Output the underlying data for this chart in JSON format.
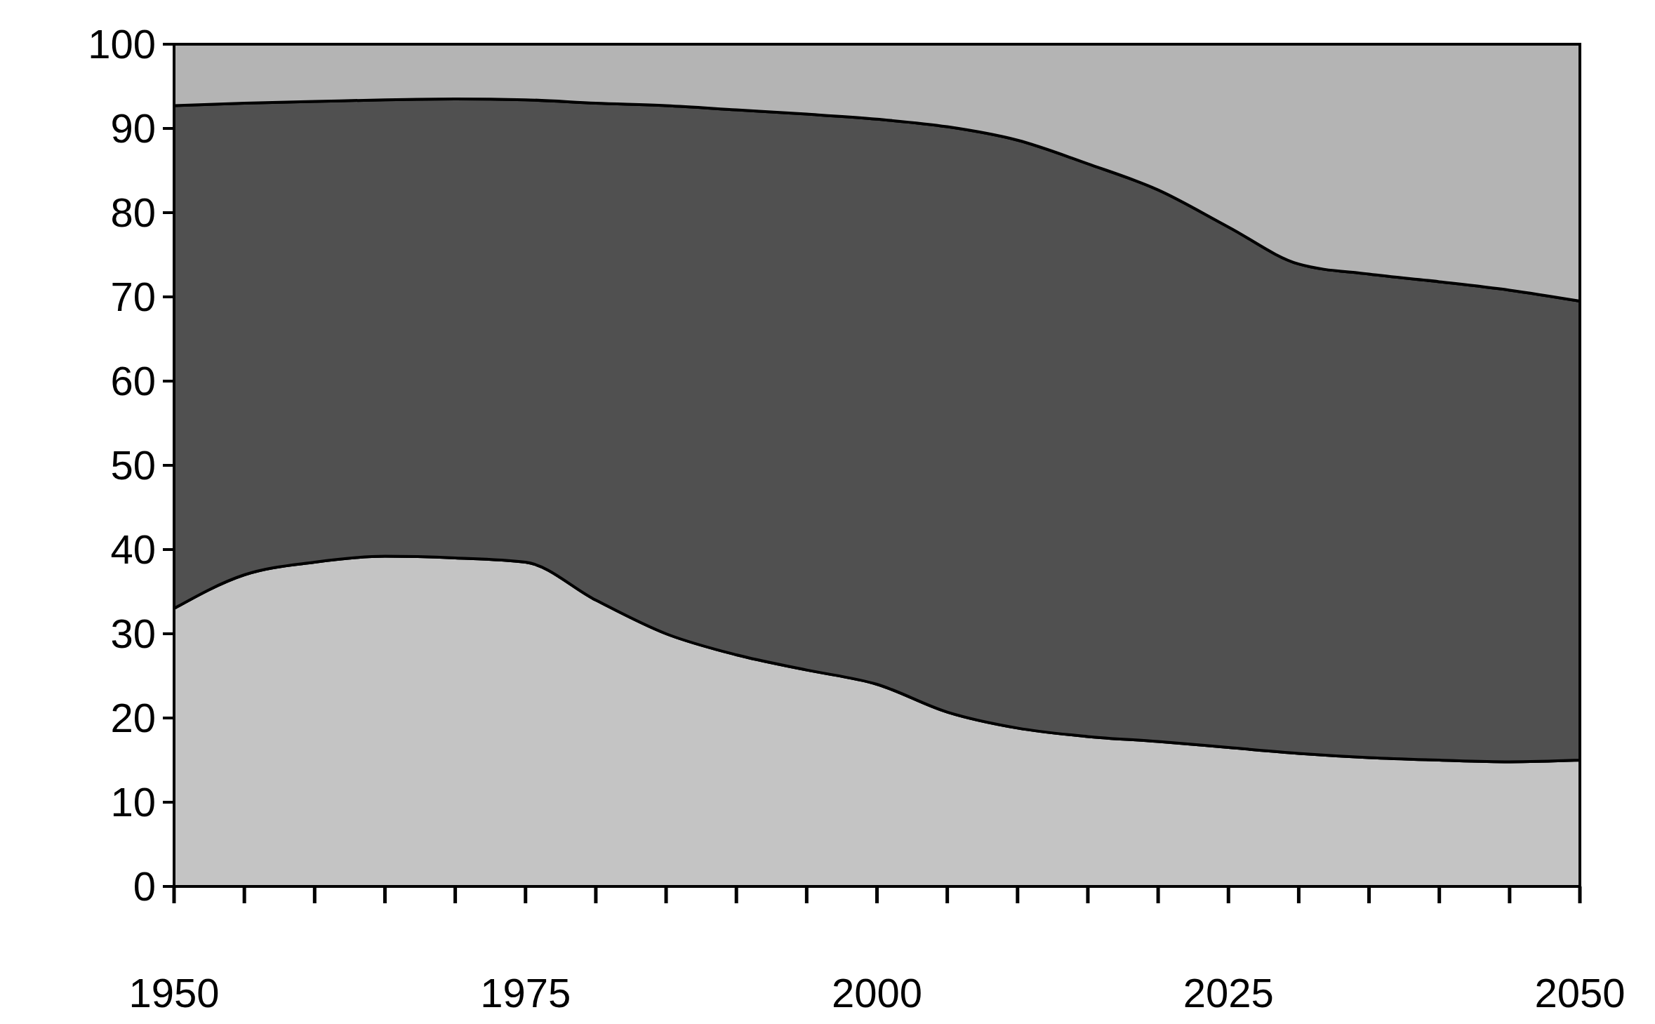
{
  "chart_data": {
    "type": "area",
    "stacked": true,
    "x": [
      1950,
      1955,
      1960,
      1965,
      1970,
      1975,
      1980,
      1985,
      1990,
      1995,
      2000,
      2005,
      2010,
      2015,
      2020,
      2025,
      2030,
      2035,
      2040,
      2045,
      2050
    ],
    "series": [
      {
        "color": "#c4c4c4",
        "values": [
          33,
          37,
          38.5,
          39.2,
          39,
          38.5,
          34,
          30,
          27.5,
          25.7,
          24,
          20.7,
          18.8,
          17.8,
          17.2,
          16.5,
          15.8,
          15.3,
          15,
          14.8,
          15
        ]
      },
      {
        "color": "#505050",
        "values": [
          59.7,
          56,
          54.7,
          54.2,
          54.5,
          54.9,
          59,
          62.7,
          64.7,
          66,
          67.1,
          69.5,
          69.8,
          68,
          65.5,
          61.8,
          58.1,
          57.4,
          56.8,
          56,
          54.5
        ]
      },
      {
        "color": "#b4b4b4",
        "values": [
          7.3,
          7,
          6.8,
          6.6,
          6.5,
          6.6,
          7,
          7.3,
          7.8,
          8.3,
          8.9,
          9.8,
          11.4,
          14.2,
          17.3,
          21.7,
          26.1,
          27.3,
          28.2,
          29.2,
          30.5
        ]
      }
    ],
    "xlim": [
      1950,
      2050
    ],
    "xticks": [
      1950,
      1975,
      2000,
      2025,
      2050
    ],
    "ylim": [
      0,
      100
    ],
    "yticks": [
      0,
      10,
      20,
      30,
      40,
      50,
      60,
      70,
      80,
      90,
      100
    ],
    "grid": false
  }
}
